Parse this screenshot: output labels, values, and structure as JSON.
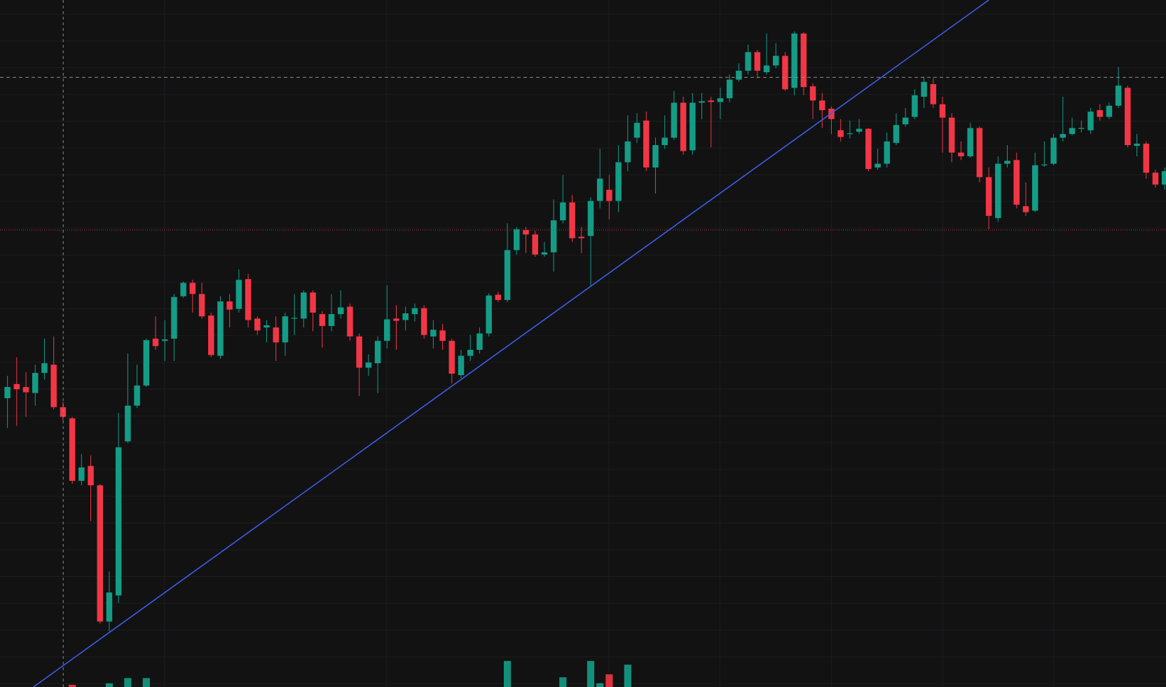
{
  "chart_data": {
    "type": "candlestick",
    "up_color": "#149c86",
    "down_color": "#f23645",
    "ylim": [
      0,
      923
    ],
    "ohlc": [
      [
        388,
        418,
        348,
        403
      ],
      [
        407,
        443,
        351,
        400
      ],
      [
        403,
        423,
        363,
        396
      ],
      [
        395,
        433,
        378,
        422
      ],
      [
        422,
        468,
        413,
        435
      ],
      [
        433,
        471,
        373,
        376
      ],
      [
        376,
        383,
        358,
        363
      ],
      [
        361,
        363,
        273,
        277
      ],
      [
        277,
        313,
        271,
        295
      ],
      [
        297,
        311,
        223,
        271
      ],
      [
        271,
        273,
        85,
        88
      ],
      [
        88,
        155,
        75,
        127
      ],
      [
        123,
        368,
        113,
        322
      ],
      [
        330,
        448,
        328,
        378
      ],
      [
        378,
        433,
        375,
        405
      ],
      [
        405,
        468,
        403,
        466
      ],
      [
        468,
        498,
        453,
        458
      ],
      [
        465,
        493,
        438,
        467
      ],
      [
        468,
        528,
        438,
        524
      ],
      [
        525,
        545,
        523,
        543
      ],
      [
        543,
        547,
        503,
        528
      ],
      [
        528,
        543,
        495,
        498
      ],
      [
        499,
        503,
        443,
        446
      ],
      [
        445,
        525,
        441,
        518
      ],
      [
        518,
        528,
        483,
        507
      ],
      [
        508,
        561,
        503,
        547
      ],
      [
        548,
        555,
        483,
        493
      ],
      [
        495,
        498,
        473,
        479
      ],
      [
        483,
        493,
        463,
        486
      ],
      [
        483,
        498,
        438,
        463
      ],
      [
        463,
        503,
        445,
        498
      ],
      [
        495,
        528,
        473,
        496
      ],
      [
        495,
        533,
        483,
        530
      ],
      [
        530,
        533,
        478,
        503
      ],
      [
        501,
        505,
        456,
        485
      ],
      [
        485,
        528,
        478,
        501
      ],
      [
        501,
        533,
        495,
        510
      ],
      [
        511,
        515,
        465,
        471
      ],
      [
        471,
        475,
        391,
        429
      ],
      [
        429,
        447,
        418,
        436
      ],
      [
        435,
        471,
        395,
        465
      ],
      [
        465,
        540,
        455,
        494
      ],
      [
        495,
        513,
        453,
        492
      ],
      [
        493,
        511,
        479,
        502
      ],
      [
        501,
        515,
        491,
        509
      ],
      [
        509,
        513,
        468,
        473
      ],
      [
        471,
        493,
        455,
        480
      ],
      [
        479,
        488,
        453,
        465
      ],
      [
        465,
        468,
        408,
        421
      ],
      [
        419,
        453,
        415,
        445
      ],
      [
        445,
        473,
        438,
        453
      ],
      [
        453,
        483,
        448,
        475
      ],
      [
        475,
        529,
        471,
        526
      ],
      [
        527,
        531,
        517,
        520
      ],
      [
        520,
        623,
        517,
        587
      ],
      [
        587,
        618,
        581,
        615
      ],
      [
        614,
        618,
        583,
        608
      ],
      [
        608,
        613,
        578,
        581
      ],
      [
        581,
        598,
        578,
        584
      ],
      [
        584,
        655,
        558,
        627
      ],
      [
        627,
        688,
        623,
        651
      ],
      [
        651,
        661,
        598,
        603
      ],
      [
        605,
        618,
        583,
        603
      ],
      [
        606,
        658,
        538,
        653
      ],
      [
        653,
        723,
        643,
        683
      ],
      [
        668,
        688,
        628,
        653
      ],
      [
        653,
        728,
        638,
        705
      ],
      [
        705,
        768,
        693,
        733
      ],
      [
        738,
        771,
        731,
        758
      ],
      [
        761,
        773,
        693,
        698
      ],
      [
        698,
        738,
        663,
        728
      ],
      [
        728,
        768,
        723,
        738
      ],
      [
        738,
        801,
        735,
        785
      ],
      [
        785,
        793,
        715,
        720
      ],
      [
        721,
        798,
        715,
        785
      ],
      [
        785,
        798,
        763,
        787
      ],
      [
        788,
        793,
        725,
        786
      ],
      [
        786,
        805,
        763,
        791
      ],
      [
        791,
        823,
        786,
        816
      ],
      [
        816,
        838,
        813,
        828
      ],
      [
        828,
        863,
        823,
        853
      ],
      [
        853,
        856,
        818,
        828
      ],
      [
        826,
        878,
        823,
        835
      ],
      [
        835,
        865,
        831,
        848
      ],
      [
        848,
        853,
        801,
        803
      ],
      [
        805,
        881,
        795,
        878
      ],
      [
        878,
        880,
        795,
        806
      ],
      [
        807,
        811,
        763,
        788
      ],
      [
        788,
        798,
        751,
        775
      ],
      [
        777,
        780,
        743,
        763
      ],
      [
        748,
        763,
        733,
        739
      ],
      [
        743,
        761,
        737,
        744
      ],
      [
        746,
        763,
        743,
        750
      ],
      [
        750,
        751,
        693,
        696
      ],
      [
        698,
        723,
        695,
        703
      ],
      [
        703,
        745,
        698,
        733
      ],
      [
        731,
        771,
        728,
        755
      ],
      [
        756,
        778,
        753,
        765
      ],
      [
        766,
        803,
        763,
        795
      ],
      [
        793,
        820,
        778,
        813
      ],
      [
        810,
        818,
        778,
        783
      ],
      [
        783,
        793,
        718,
        765
      ],
      [
        765,
        771,
        705,
        718
      ],
      [
        718,
        733,
        708,
        713
      ],
      [
        713,
        758,
        711,
        751
      ],
      [
        751,
        753,
        678,
        685
      ],
      [
        685,
        698,
        615,
        633
      ],
      [
        630,
        713,
        625,
        703
      ],
      [
        703,
        728,
        698,
        707
      ],
      [
        708,
        718,
        643,
        648
      ],
      [
        646,
        678,
        633,
        638
      ],
      [
        640,
        718,
        638,
        701
      ],
      [
        701,
        733,
        699,
        702
      ],
      [
        703,
        743,
        701,
        738
      ],
      [
        738,
        793,
        733,
        743
      ],
      [
        743,
        765,
        741,
        751
      ],
      [
        750,
        761,
        745,
        751
      ],
      [
        748,
        778,
        743,
        773
      ],
      [
        775,
        783,
        761,
        766
      ],
      [
        766,
        785,
        763,
        781
      ],
      [
        781,
        833,
        778,
        808
      ],
      [
        805,
        808,
        725,
        728
      ],
      [
        727,
        743,
        713,
        730
      ],
      [
        730,
        733,
        683,
        691
      ],
      [
        691,
        695,
        671,
        675
      ],
      [
        675,
        698,
        668,
        693
      ]
    ],
    "volume": [
      null,
      null,
      null,
      null,
      null,
      null,
      null,
      3,
      null,
      null,
      null,
      5,
      null,
      12,
      null,
      12,
      null,
      null,
      null,
      null,
      null,
      null,
      null,
      null,
      null,
      null,
      null,
      null,
      null,
      null,
      null,
      null,
      null,
      null,
      null,
      null,
      null,
      null,
      null,
      null,
      null,
      null,
      null,
      null,
      null,
      null,
      null,
      null,
      null,
      null,
      null,
      null,
      null,
      null,
      35,
      null,
      null,
      null,
      null,
      null,
      13,
      null,
      null,
      35,
      5,
      17,
      null,
      30,
      null,
      null,
      null,
      null,
      null,
      null,
      null,
      null,
      null,
      null,
      null,
      null,
      null,
      null,
      null,
      null,
      null,
      null,
      null,
      null,
      null,
      null,
      null,
      null,
      null,
      null,
      null,
      null,
      null,
      null,
      null,
      null,
      null,
      null,
      null,
      null,
      null,
      null,
      null,
      null,
      null,
      null,
      null,
      null,
      null,
      null,
      null,
      null,
      null,
      null,
      null,
      null,
      null,
      null,
      null,
      null,
      null,
      null
    ],
    "trendline": {
      "x": [
        2.81,
        106.0
      ],
      "y": [
        0,
        923
      ],
      "color": "#3a5ee8"
    },
    "price_line": {
      "value": 614,
      "color": "#b8343f"
    }
  }
}
